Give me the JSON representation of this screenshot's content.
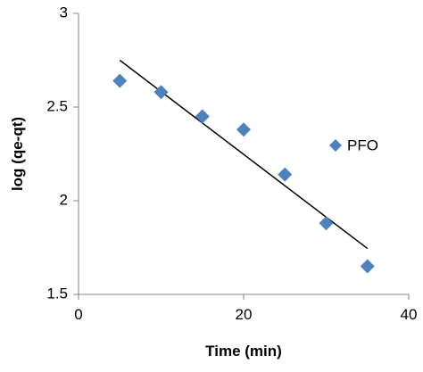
{
  "chart_data": {
    "type": "scatter",
    "xlabel": "Time (min)",
    "ylabel": "log (qe-qt)",
    "xlim": [
      0,
      40
    ],
    "ylim": [
      1.5,
      3
    ],
    "xticks": [
      0,
      20,
      40
    ],
    "yticks": [
      1.5,
      2,
      2.5,
      3
    ],
    "xtick_labels": [
      "0",
      "20",
      "40"
    ],
    "ytick_labels": [
      "1.5",
      "2",
      "2.5",
      "3"
    ],
    "grid": false,
    "legend_position": "right",
    "series": [
      {
        "name": "PFO",
        "marker": "diamond",
        "color": "#4F81BD",
        "x": [
          5,
          10,
          15,
          20,
          25,
          30,
          35
        ],
        "y": [
          2.64,
          2.58,
          2.45,
          2.38,
          2.14,
          1.88,
          1.65
        ]
      }
    ],
    "trendline": {
      "type": "linear",
      "color": "#000000",
      "x": [
        5,
        35
      ],
      "y": [
        2.75,
        1.745
      ]
    }
  }
}
